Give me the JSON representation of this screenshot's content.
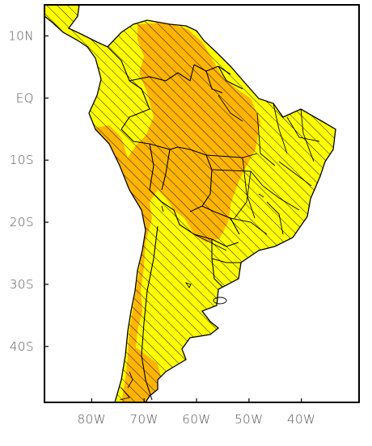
{
  "map": {
    "y_ticks": [
      {
        "label": "10N",
        "lat": 10
      },
      {
        "label": "EQ",
        "lat": 0
      },
      {
        "label": "10S",
        "lat": -10
      },
      {
        "label": "20S",
        "lat": -20
      },
      {
        "label": "30S",
        "lat": -30
      },
      {
        "label": "40S",
        "lat": -40
      }
    ],
    "x_ticks": [
      {
        "label": "80W",
        "lon": -80
      },
      {
        "label": "70W",
        "lon": -70
      },
      {
        "label": "60W",
        "lon": -60
      },
      {
        "label": "50W",
        "lon": -50
      },
      {
        "label": "40W",
        "lon": -40
      }
    ],
    "lon_range": [
      -89,
      -29
    ],
    "lat_range": [
      -49,
      15
    ],
    "colors": {
      "background_land": "#ffff00",
      "highlight_region": "#ffb400",
      "hatch": "#000000",
      "border": "#000000",
      "frame": "#000000",
      "ocean": "#ffffff"
    },
    "hatching": "diagonal lines over all land",
    "features": [
      "coastline",
      "country-borders",
      "state-borders",
      "shaded-region"
    ]
  }
}
